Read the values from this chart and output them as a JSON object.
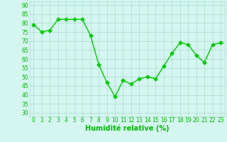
{
  "x": [
    0,
    1,
    2,
    3,
    4,
    5,
    6,
    7,
    8,
    9,
    10,
    11,
    12,
    13,
    14,
    15,
    16,
    17,
    18,
    19,
    20,
    21,
    22,
    23
  ],
  "y": [
    79,
    75,
    76,
    82,
    82,
    82,
    82,
    73,
    57,
    47,
    39,
    48,
    46,
    49,
    50,
    49,
    56,
    63,
    69,
    68,
    62,
    58,
    68,
    69
  ],
  "line_color": "#00cc00",
  "marker": "D",
  "marker_size": 2.5,
  "linewidth": 1.0,
  "xlabel": "Humidité relative (%)",
  "xlabel_color": "#00bb00",
  "xlabel_fontsize": 7,
  "ylabel_ticks": [
    30,
    35,
    40,
    45,
    50,
    55,
    60,
    65,
    70,
    75,
    80,
    85,
    90
  ],
  "xlim": [
    -0.5,
    23.5
  ],
  "ylim": [
    28,
    92
  ],
  "background_color": "#d4f5f0",
  "grid_color": "#aaddcc",
  "tick_fontsize": 5.5,
  "tick_label_color": "#00bb00"
}
